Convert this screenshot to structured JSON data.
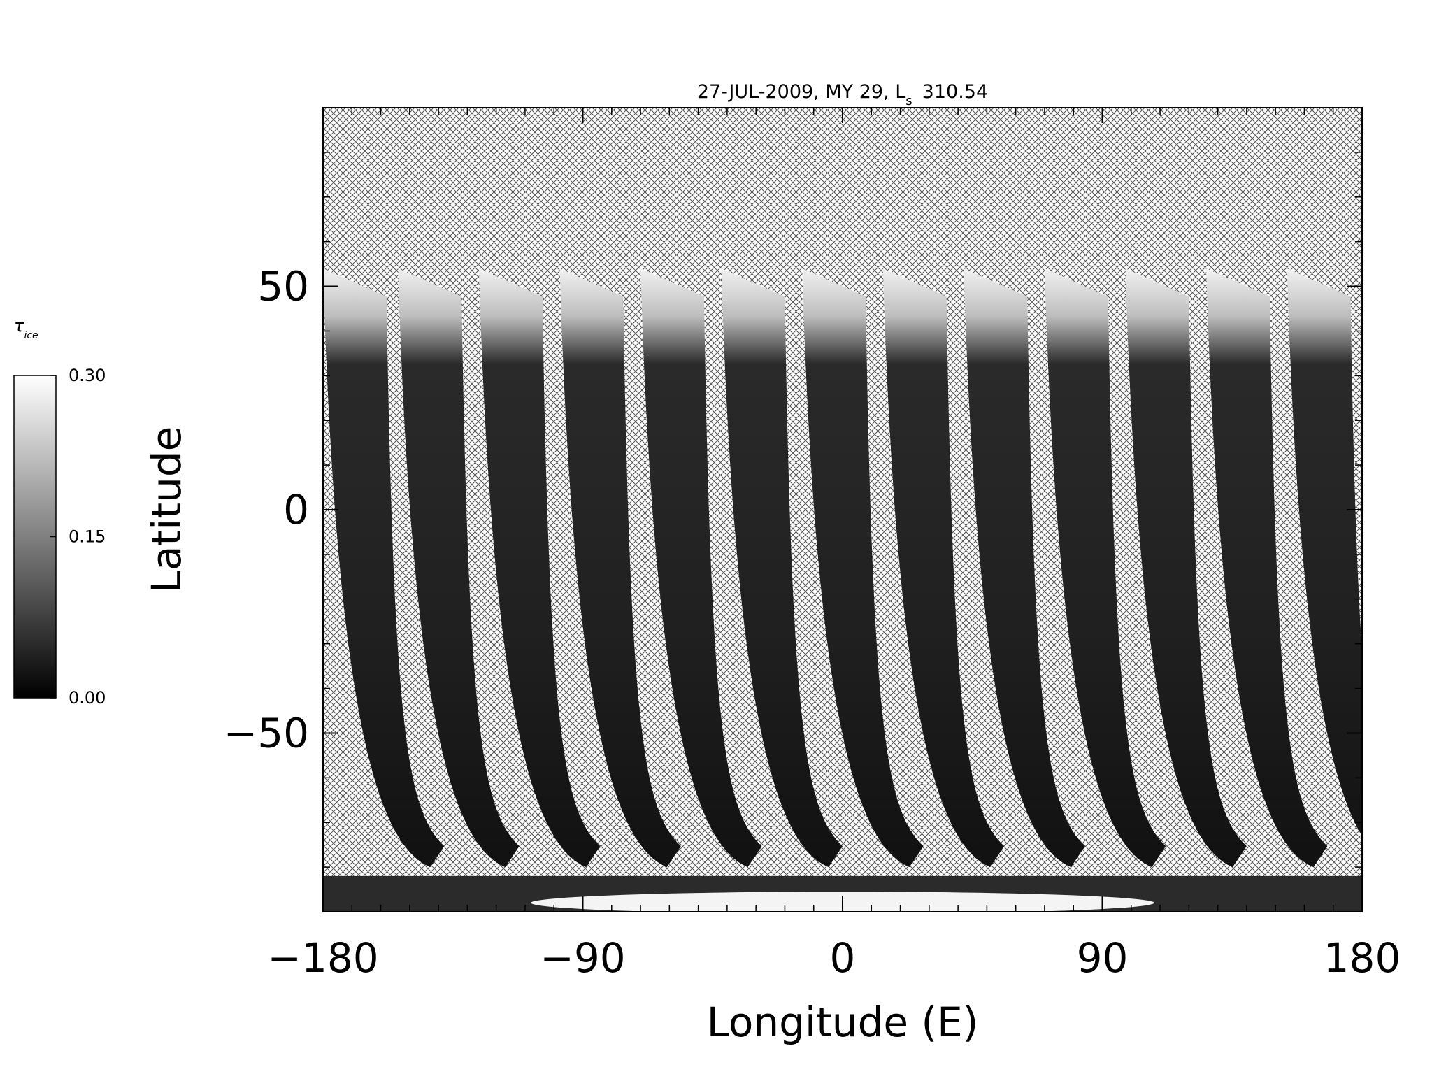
{
  "chart_data": {
    "type": "heatmap",
    "title": "27-JUL-2009, MY 29,  L",
    "title_subscript": "s",
    "title_value": "310.54",
    "xlabel": "Longitude (E)",
    "ylabel": "Latitude",
    "xlim": [
      -180,
      180
    ],
    "ylim": [
      -90,
      90
    ],
    "x_ticks": [
      -180,
      -90,
      0,
      90,
      180
    ],
    "x_tick_labels": [
      "−180",
      "−90",
      "0",
      "90",
      "180"
    ],
    "y_ticks": [
      -50,
      0,
      50
    ],
    "y_tick_labels": [
      "−50",
      "0",
      "50"
    ],
    "no_data_fill": "crosshatch",
    "colorbar": {
      "label": "τ",
      "label_subscript": "ice",
      "min": 0.0,
      "max": 0.3,
      "tick_values": [
        0.0,
        0.15,
        0.3
      ],
      "tick_labels": [
        "0.00",
        "0.15",
        "0.30"
      ],
      "colors": [
        "#000000",
        "#ffffff"
      ]
    },
    "swaths": [
      {
        "lon_at_top": -180,
        "lat_top": 54
      },
      {
        "lon_at_top": -154,
        "lat_top": 54
      },
      {
        "lon_at_top": -126,
        "lat_top": 54
      },
      {
        "lon_at_top": -98,
        "lat_top": 54
      },
      {
        "lon_at_top": -70,
        "lat_top": 54
      },
      {
        "lon_at_top": -42,
        "lat_top": 54
      },
      {
        "lon_at_top": -14,
        "lat_top": 54
      },
      {
        "lon_at_top": 14,
        "lat_top": 54
      },
      {
        "lon_at_top": 42,
        "lat_top": 54
      },
      {
        "lon_at_top": 70,
        "lat_top": 54
      },
      {
        "lon_at_top": 98,
        "lat_top": 54
      },
      {
        "lon_at_top": 126,
        "lat_top": 54
      },
      {
        "lon_at_top": 154,
        "lat_top": 54
      }
    ],
    "swath_lat_bottom": -80,
    "swath_bottom_shift_deg": 20,
    "swath_width_deg": 22,
    "north_edge_high_tau_lat_range": [
      38,
      54
    ],
    "south_polar_cap_lat_range": [
      -90,
      -82
    ]
  }
}
